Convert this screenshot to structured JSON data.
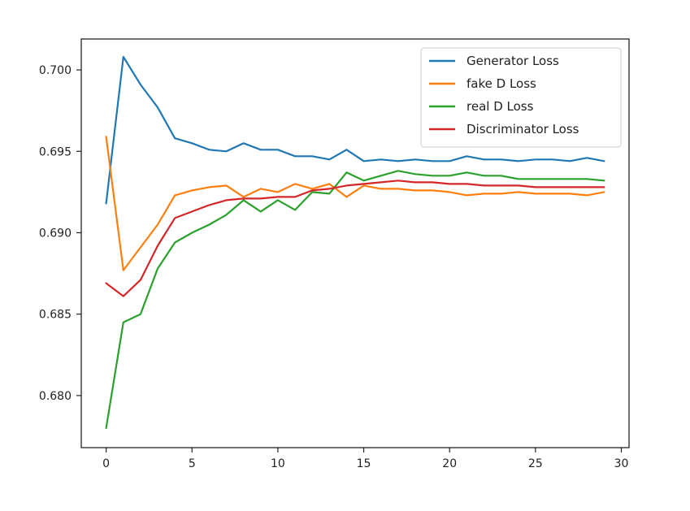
{
  "chart_data": {
    "type": "line",
    "title": "",
    "xlabel": "",
    "ylabel": "",
    "xlim": [
      -1.45,
      30.45
    ],
    "ylim": [
      0.6768,
      0.7019
    ],
    "xticks": [
      0,
      5,
      10,
      15,
      20,
      25,
      30
    ],
    "yticks": [
      0.68,
      0.685,
      0.69,
      0.695,
      0.7
    ],
    "xtick_labels": [
      "0",
      "5",
      "10",
      "15",
      "20",
      "25",
      "30"
    ],
    "ytick_labels": [
      "0.680",
      "0.685",
      "0.690",
      "0.695",
      "0.700"
    ],
    "grid": false,
    "legend_position": "top-right",
    "x": [
      0,
      1,
      2,
      3,
      4,
      5,
      6,
      7,
      8,
      9,
      10,
      11,
      12,
      13,
      14,
      15,
      16,
      17,
      18,
      19,
      20,
      21,
      22,
      23,
      24,
      25,
      26,
      27,
      28,
      29
    ],
    "series": [
      {
        "name": "Generator Loss",
        "color": "#1f77b4",
        "values": [
          0.6918,
          0.7008,
          0.6991,
          0.6977,
          0.6958,
          0.6955,
          0.6951,
          0.695,
          0.6955,
          0.6951,
          0.6951,
          0.6947,
          0.6947,
          0.6945,
          0.6951,
          0.6944,
          0.6945,
          0.6944,
          0.6945,
          0.6944,
          0.6944,
          0.6947,
          0.6945,
          0.6945,
          0.6944,
          0.6945,
          0.6945,
          0.6944,
          0.6946,
          0.6944
        ]
      },
      {
        "name": "fake D Loss",
        "color": "#ff7f0e",
        "values": [
          0.6959,
          0.6877,
          0.6891,
          0.6905,
          0.6923,
          0.6926,
          0.6928,
          0.6929,
          0.6922,
          0.6927,
          0.6925,
          0.693,
          0.6927,
          0.693,
          0.6922,
          0.6929,
          0.6927,
          0.6927,
          0.6926,
          0.6926,
          0.6925,
          0.6923,
          0.6924,
          0.6924,
          0.6925,
          0.6924,
          0.6924,
          0.6924,
          0.6923,
          0.6925
        ]
      },
      {
        "name": "real D Loss",
        "color": "#2ca02c",
        "values": [
          0.678,
          0.6845,
          0.685,
          0.6878,
          0.6894,
          0.69,
          0.6905,
          0.6911,
          0.692,
          0.6913,
          0.692,
          0.6914,
          0.6925,
          0.6924,
          0.6937,
          0.6932,
          0.6935,
          0.6938,
          0.6936,
          0.6935,
          0.6935,
          0.6937,
          0.6935,
          0.6935,
          0.6933,
          0.6933,
          0.6933,
          0.6933,
          0.6933,
          0.6932
        ]
      },
      {
        "name": "Discriminator Loss",
        "color": "#d62728",
        "values": [
          0.6869,
          0.6861,
          0.6871,
          0.6892,
          0.6909,
          0.6913,
          0.6917,
          0.692,
          0.6921,
          0.6921,
          0.6922,
          0.6922,
          0.6926,
          0.6927,
          0.6929,
          0.693,
          0.6931,
          0.6932,
          0.6931,
          0.6931,
          0.693,
          0.693,
          0.6929,
          0.6929,
          0.6929,
          0.6928,
          0.6928,
          0.6928,
          0.6928,
          0.6928
        ]
      }
    ]
  }
}
